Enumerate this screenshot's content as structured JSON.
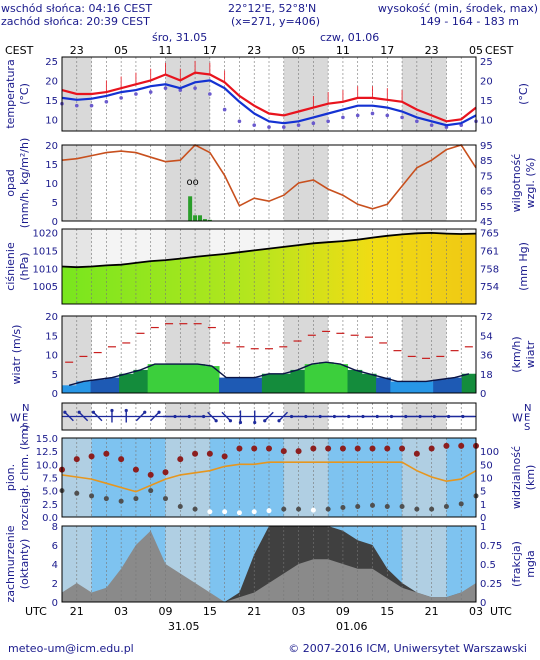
{
  "header": {
    "sunrise": "wschód słońca: 04:16 CEST",
    "sunset": "zachód słońca: 20:39 CEST",
    "coords": "22°12'E, 52°8'N",
    "grid": "(x=271, y=406)",
    "height_title": "wysokość (min, środek, max)",
    "height_values": "149 - 164 - 183 m"
  },
  "time_axis": {
    "tz_top": "CEST",
    "tz_bottom": "UTC",
    "top_hours": [
      "23",
      "05",
      "11",
      "17",
      "23",
      "05",
      "11",
      "17",
      "23",
      "05"
    ],
    "bottom_hours": [
      "21",
      "03",
      "09",
      "15",
      "21",
      "03",
      "09",
      "15",
      "21",
      "03"
    ],
    "day1_top": "śro, 31.05",
    "day2_top": "czw, 01.06",
    "day1_bottom": "31.05",
    "day2_bottom": "01.06"
  },
  "footer": {
    "email": "meteo-um@icm.edu.pl",
    "copyright": "© 2007-2016 ICM, Uniwersytet Warszawski"
  },
  "colors": {
    "text": "#1a1a8c",
    "night": "#d9d9d9",
    "temp_line": "#e8141e",
    "dew_line": "#1432d2",
    "precip_bar": "#2a9d2a",
    "humidity_line": "#c8501e",
    "wind_bar": "#1e46c8",
    "sky_blue": "#7ec3f0",
    "cloud_dark": "#404040"
  },
  "chart_data": [
    {
      "type": "line",
      "ylabel_left": "temperatura (°C)",
      "ylabel_right": "(°C)",
      "ylim": [
        7,
        26
      ],
      "yticks": [
        10,
        15,
        20,
        25
      ],
      "x_hours": [
        0,
        3,
        6,
        9,
        12,
        15,
        18,
        21,
        24,
        27,
        30,
        33,
        36,
        39,
        42,
        45,
        48,
        51,
        54,
        57,
        60,
        63,
        66,
        69,
        72,
        75,
        78,
        81,
        84
      ],
      "series": [
        {
          "key": "temperature",
          "values": [
            17.5,
            16.5,
            16.5,
            17,
            18,
            19,
            20,
            21.5,
            20,
            22,
            21.5,
            19.5,
            16,
            13.5,
            11.5,
            11,
            12,
            13,
            14,
            14.5,
            15.5,
            15.5,
            15,
            14.5,
            12.5,
            11,
            9.5,
            10,
            13
          ]
        },
        {
          "key": "dew_point",
          "values": [
            15.5,
            15,
            15.3,
            16,
            17,
            17.5,
            18.5,
            19,
            18,
            19.5,
            20,
            18,
            14.5,
            11.5,
            9.5,
            9,
            9.5,
            10.5,
            11.5,
            12.5,
            13.5,
            13.5,
            13,
            12,
            10.5,
            9.5,
            8.5,
            9,
            11
          ]
        },
        {
          "key": "perceived",
          "values": [
            14,
            13.5,
            13.5,
            14.5,
            15.5,
            16.5,
            17,
            18,
            17.5,
            18,
            16.5,
            12.5,
            9.5,
            8.5,
            8,
            8,
            8.5,
            9,
            9.5,
            10.5,
            11,
            11.5,
            11,
            10.5,
            9.5,
            8.5,
            8,
            8.5,
            9.5
          ]
        }
      ]
    },
    {
      "type": "bar",
      "ylabel_left": "opad (mm/h, kg/m²/h)",
      "ylabel_right": "wilgotność wzgl. (%)",
      "ylim": [
        0,
        20
      ],
      "yticks": [
        0,
        5,
        10,
        15,
        20
      ],
      "y2lim": [
        45,
        95
      ],
      "y2ticks": [
        45,
        55,
        65,
        75,
        85,
        95
      ],
      "precip_hours": [
        26,
        27,
        28,
        29,
        30
      ],
      "precip_values": [
        6.5,
        1.5,
        1.5,
        0.5,
        0.3
      ],
      "humidity": [
        85,
        86,
        88,
        90,
        91,
        90,
        87,
        84,
        85,
        95,
        90,
        75,
        55,
        60,
        58,
        62,
        70,
        72,
        66,
        62,
        56,
        53,
        56,
        68,
        80,
        85,
        92,
        95,
        80
      ]
    },
    {
      "type": "area",
      "ylabel_left": "ciśnienie (hPa)",
      "ylabel_right": "(mm Hg)",
      "ylim": [
        1000,
        1021
      ],
      "yticks": [
        1005,
        1010,
        1015,
        1020
      ],
      "y2ticks": [
        "754",
        "758",
        "761",
        "765"
      ],
      "values": [
        1010.5,
        1010.3,
        1010.5,
        1010.8,
        1011,
        1011.5,
        1012,
        1012.3,
        1012.7,
        1013.2,
        1013.6,
        1014,
        1014.5,
        1015,
        1015.5,
        1016,
        1016.5,
        1017,
        1017.3,
        1017.6,
        1018,
        1018.6,
        1019.1,
        1019.5,
        1019.8,
        1019.9,
        1019.7,
        1019.6,
        1019.7
      ]
    },
    {
      "type": "bar",
      "ylabel_left": "wiatr (m/s)",
      "ylabel_right": "(km/h) wiatr",
      "ylim": [
        0,
        20
      ],
      "yticks": [
        0,
        5,
        10,
        15,
        20
      ],
      "y2ticks": [
        "0",
        "18",
        "36",
        "54",
        "72"
      ],
      "speed": [
        2,
        3,
        3.5,
        4,
        5,
        6,
        7.5,
        7.5,
        7.5,
        7.5,
        7,
        4,
        4,
        4,
        5,
        5,
        6,
        7.5,
        8,
        7.5,
        6,
        5,
        4,
        3,
        3,
        3,
        3.5,
        4,
        5
      ],
      "gusts": [
        8,
        9.5,
        10.5,
        12,
        13,
        15.5,
        17,
        18,
        18,
        18,
        17,
        13,
        12,
        11.5,
        11.5,
        12,
        13.5,
        15,
        16,
        15.5,
        15,
        14.5,
        13,
        11,
        9.5,
        9,
        9.5,
        11,
        12
      ]
    },
    {
      "type": "table",
      "ylabel_left": "W",
      "compass": [
        "N",
        "E",
        "S"
      ],
      "directions": [
        "SE",
        "SE",
        "SE",
        "S",
        "S",
        "SW",
        "SW",
        "W",
        "W",
        "W",
        "NW",
        "NW",
        "N",
        "N",
        "NE",
        "NE",
        "E",
        "E",
        "E",
        "E",
        "E",
        "E",
        "E",
        "E",
        "E",
        "E",
        "E",
        "E",
        "E"
      ]
    },
    {
      "type": "scatter",
      "ylabel_left": "pion. rozciągł. chm. (km)",
      "ylabel_right": "widzialność (km)",
      "ylim": [
        0,
        15
      ],
      "yticks": [
        "0.0",
        "2.5",
        "5.0",
        "7.5",
        "10.0",
        "12.5",
        "15.0"
      ],
      "y2ticks": [
        "0",
        "1",
        "5",
        "10",
        "50",
        "100"
      ],
      "visibility": [
        10,
        9.5,
        9,
        8,
        7,
        6,
        7.5,
        9,
        10,
        10.5,
        11,
        12,
        12.5,
        12.5,
        13,
        13,
        13,
        13,
        13,
        13,
        13,
        13,
        13,
        13,
        11,
        9.5,
        8.5,
        9,
        11
      ],
      "cloud_top": [
        9,
        11,
        11.5,
        12,
        11,
        9,
        8,
        8.5,
        11,
        12,
        12,
        11.5,
        13,
        13,
        13,
        12.5,
        12.5,
        13,
        13,
        13,
        13,
        13,
        13,
        13,
        12,
        13,
        13.5,
        13.5,
        13.5
      ],
      "cloud_base": [
        5,
        4.5,
        4,
        3.5,
        3,
        3.5,
        5,
        3.5,
        2,
        1.5,
        1,
        1,
        0.8,
        1,
        1.2,
        1.5,
        1.5,
        1.3,
        1.5,
        1.8,
        2,
        2.2,
        2,
        2,
        1.5,
        1.5,
        2,
        2.5,
        4
      ]
    },
    {
      "type": "area",
      "ylabel_left": "zachmurzenie (oktanty)",
      "ylabel_right": "(frakcja) mgła",
      "ylim": [
        0,
        8
      ],
      "yticks": [
        "0",
        "2",
        "4",
        "6",
        "8"
      ],
      "y2ticks": [
        "0",
        "0.25",
        "0.5",
        "0.75",
        "1"
      ],
      "total_cloud": [
        1,
        2,
        1,
        1.5,
        3.5,
        6,
        7.5,
        4,
        3,
        2,
        1,
        0,
        0.5,
        1,
        2,
        3,
        4,
        4.5,
        4.5,
        4,
        3.5,
        3.5,
        2.5,
        1.5,
        1,
        0.5,
        0.5,
        1,
        2
      ],
      "low_cloud": [
        0.5,
        1,
        0.5,
        1,
        2,
        4.5,
        6,
        2.5,
        2,
        1,
        0.5,
        0,
        1,
        5,
        8,
        8,
        8,
        8,
        8,
        7.5,
        6.5,
        6,
        3.5,
        2,
        1,
        0.5,
        0.5,
        1,
        1.5
      ]
    }
  ]
}
